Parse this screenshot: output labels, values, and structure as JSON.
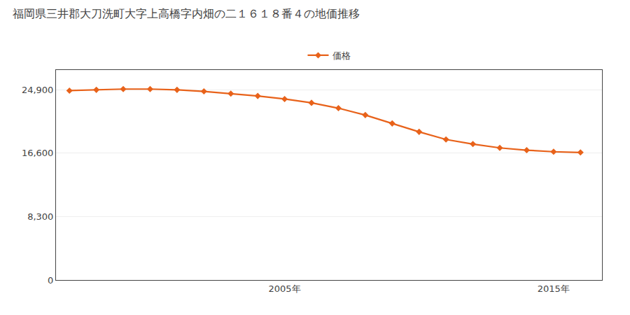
{
  "chart_data": {
    "type": "line",
    "title": "福岡県三井郡大刀洗町大字上高橋字内畑の二１６１８番４の地価推移",
    "x": [
      1997,
      1998,
      1999,
      2000,
      2001,
      2002,
      2003,
      2004,
      2005,
      2006,
      2007,
      2008,
      2009,
      2010,
      2011,
      2012,
      2013,
      2014,
      2015,
      2016
    ],
    "series": [
      {
        "name": "価格",
        "color": "#e8621a",
        "marker": "diamond",
        "values": [
          24800,
          24900,
          25000,
          25000,
          24900,
          24700,
          24400,
          24100,
          23700,
          23200,
          22500,
          21600,
          20500,
          19400,
          18400,
          17800,
          17300,
          17000,
          16800,
          16700
        ]
      }
    ],
    "xlim": [
      1996.5,
      2016.8
    ],
    "xticks": [
      {
        "value": 2005,
        "label": "2005年"
      },
      {
        "value": 2015,
        "label": "2015年"
      }
    ],
    "ylim": [
      0,
      27500
    ],
    "yticks": [
      0,
      {
        "value": 8300,
        "label": "8,300"
      },
      {
        "value": 16600,
        "label": "16,600"
      },
      {
        "value": 24900,
        "label": "24,900"
      }
    ],
    "grid": "y",
    "legend": "top"
  }
}
